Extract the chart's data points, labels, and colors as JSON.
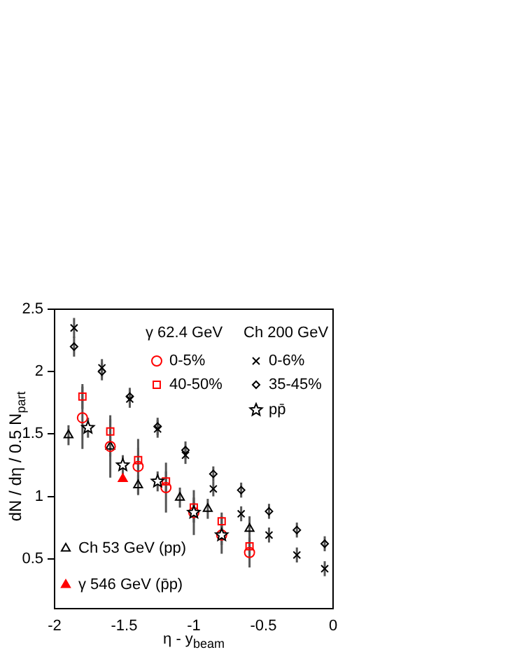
{
  "chart_data": {
    "type": "scatter",
    "xlabel": "η - y$_{beam}$",
    "ylabel": "dN / dη / 0.5 N$_{part}$",
    "xlim": [
      -2,
      0
    ],
    "ylim": [
      0.1,
      2.5
    ],
    "xticks": [
      -2,
      -1.5,
      -1,
      -0.5,
      0
    ],
    "yticks": [
      0.5,
      1,
      1.5,
      2,
      2.5
    ],
    "grid": false,
    "legend": "center",
    "annotations": [
      "γ 62.4 GeV",
      "Ch 200 GeV"
    ],
    "series": [
      {
        "name": "0-5%",
        "color": "#ff0000",
        "marker": "circle",
        "x": [
          -1.8,
          -1.6,
          -1.4,
          -1.2,
          -1.0,
          -0.8,
          -0.6
        ],
        "values": [
          1.63,
          1.4,
          1.24,
          1.07,
          0.87,
          0.69,
          0.55
        ],
        "errors": [
          0.25,
          0.25,
          0.22,
          0.2,
          0.18,
          0.15,
          0.12
        ]
      },
      {
        "name": "40-50%",
        "color": "#ff0000",
        "marker": "square",
        "x": [
          -1.8,
          -1.6,
          -1.4,
          -1.2,
          -1.0,
          -0.8,
          -0.6
        ],
        "values": [
          1.8,
          1.52,
          1.29,
          1.12,
          0.91,
          0.8,
          0.6
        ],
        "errors": [
          0.1,
          0.1,
          0.1,
          0.08,
          0.08,
          0.07,
          0.06
        ]
      },
      {
        "name": "0-6%",
        "color": "#000000",
        "marker": "cross",
        "x": [
          -1.86,
          -1.66,
          -1.46,
          -1.26,
          -1.06,
          -0.86,
          -0.66,
          -0.46,
          -0.26,
          -0.06
        ],
        "values": [
          2.35,
          2.03,
          1.78,
          1.54,
          1.33,
          1.06,
          0.86,
          0.69,
          0.53,
          0.42
        ],
        "errors": [
          0.08,
          0.07,
          0.07,
          0.07,
          0.07,
          0.06,
          0.06,
          0.06,
          0.06,
          0.06
        ]
      },
      {
        "name": "35-45%",
        "color": "#000000",
        "marker": "diamond",
        "x": [
          -1.86,
          -1.66,
          -1.46,
          -1.26,
          -1.06,
          -0.86,
          -0.66,
          -0.46,
          -0.26,
          -0.06
        ],
        "values": [
          2.2,
          2.0,
          1.8,
          1.56,
          1.37,
          1.18,
          1.05,
          0.88,
          0.73,
          0.62
        ],
        "errors": [
          0.08,
          0.07,
          0.07,
          0.07,
          0.07,
          0.06,
          0.06,
          0.06,
          0.06,
          0.06
        ]
      },
      {
        "name": "pp̄",
        "color": "#000000",
        "marker": "star",
        "x": [
          -1.76,
          -1.51,
          -1.26,
          -1.0,
          -0.8
        ],
        "values": [
          1.55,
          1.25,
          1.12,
          0.87,
          0.69
        ],
        "errors": [
          0.08,
          0.08,
          0.08,
          0.08,
          0.08
        ]
      },
      {
        "name": "Ch 53 GeV (pp)",
        "color": "#000000",
        "marker": "triangle",
        "x": [
          -1.9,
          -1.6,
          -1.4,
          -1.1,
          -0.9,
          -0.6
        ],
        "values": [
          1.49,
          1.4,
          1.09,
          0.99,
          0.9,
          0.74
        ],
        "errors": [
          0.08,
          0.08,
          0.08,
          0.08,
          0.08,
          0.1
        ]
      },
      {
        "name": "γ 546 GeV (p̄p)",
        "color": "#ff0000",
        "marker": "triangle",
        "x": [
          -1.51
        ],
        "values": [
          1.14
        ]
      }
    ]
  }
}
